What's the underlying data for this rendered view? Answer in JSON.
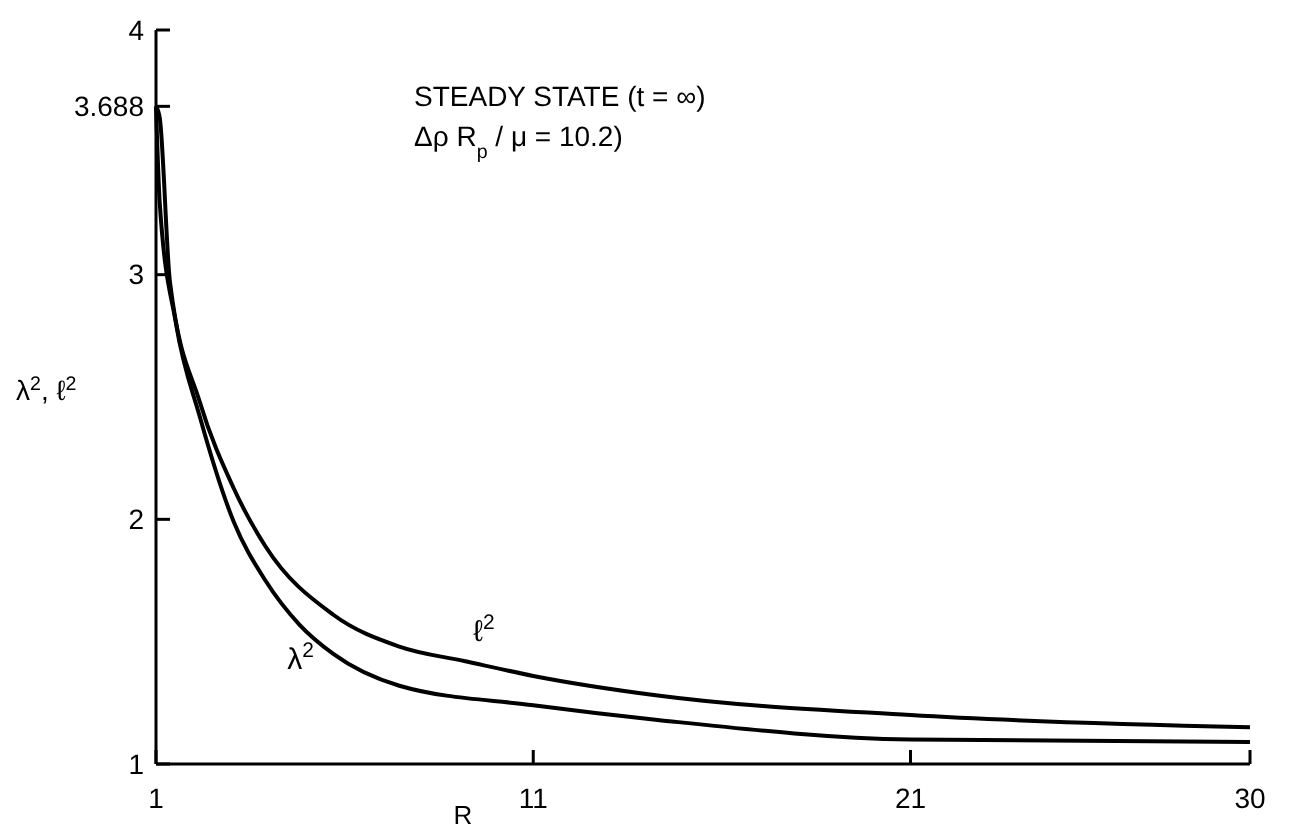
{
  "chart_data": {
    "type": "line",
    "xlabel": "R",
    "ylabel": "λ$^{2}$, ℓ$^{2}$",
    "annotations": [
      "STEADY STATE (t = ∞)",
      "Δρ R$_{p}$ / μ = 10.2)"
    ],
    "xlim": [
      1,
      30
    ],
    "xticks": [
      1,
      11,
      21,
      30
    ],
    "ylim": [
      1,
      4
    ],
    "yticks": [
      1,
      2,
      3,
      3.688,
      4
    ],
    "grid": false,
    "legend": false,
    "marker": "none",
    "line_style": "solid",
    "series": [
      {
        "name": "ℓ$^{2}$",
        "color": "#000000",
        "x": [
          1,
          1.1,
          1.37,
          2.16,
          3.05,
          3.9,
          5.7,
          7.45,
          9.2,
          11,
          14.3,
          21,
          30
        ],
        "values": [
          3.688,
          3.64,
          2.97,
          2.48,
          2.13,
          1.89,
          1.61,
          1.48,
          1.42,
          1.36,
          1.28,
          1.2,
          1.15
        ]
      },
      {
        "name": "λ$^{2}$",
        "color": "#000000",
        "x": [
          1,
          1.1,
          1.53,
          2.16,
          3.06,
          3.9,
          4.8,
          5.7,
          7.45,
          11,
          14.3,
          21,
          30
        ],
        "values": [
          3.688,
          3.29,
          2.8,
          2.42,
          1.99,
          1.75,
          1.57,
          1.45,
          1.32,
          1.24,
          1.18,
          1.1,
          1.09
        ]
      }
    ]
  }
}
